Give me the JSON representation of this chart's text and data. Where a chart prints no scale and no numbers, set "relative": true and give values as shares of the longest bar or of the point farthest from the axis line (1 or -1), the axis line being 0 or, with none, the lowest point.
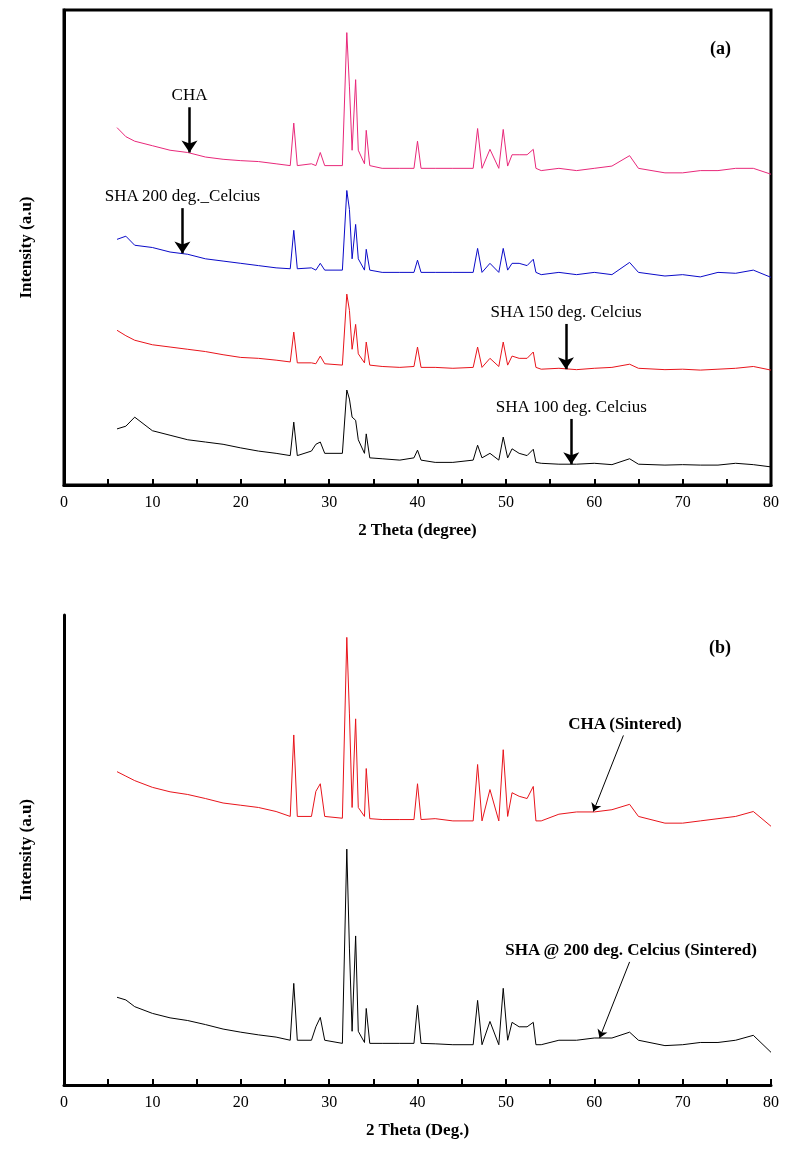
{
  "chart_data": [
    {
      "type": "line",
      "title": "(a)",
      "xlabel": "2 Theta (degree)",
      "ylabel": "Intensity (a.u)",
      "relative": true,
      "xlim": [
        0,
        80
      ],
      "xticks": [
        0,
        {
          "value": 5,
          "label": null
        },
        10,
        {
          "value": 15,
          "label": null
        },
        20,
        {
          "value": 25,
          "label": null
        },
        30,
        {
          "value": 35,
          "label": null
        },
        40,
        {
          "value": 45,
          "label": null
        },
        50,
        {
          "value": 55,
          "label": null
        },
        60,
        {
          "value": 65,
          "label": null
        },
        70,
        {
          "value": 75,
          "label": null
        },
        80
      ],
      "x": [
        6,
        7,
        8,
        10,
        12,
        14,
        16,
        18,
        20,
        22,
        24,
        25.6,
        26,
        26.4,
        28,
        28.5,
        29,
        29.5,
        31.5,
        32,
        32.3,
        32.6,
        33,
        33.3,
        34,
        34.2,
        34.6,
        36,
        38,
        39.6,
        40,
        40.4,
        42,
        44,
        46.3,
        46.8,
        47.3,
        48.2,
        49.2,
        49.7,
        50.2,
        50.7,
        51.5,
        52.4,
        53.1,
        53.4,
        54,
        56,
        58,
        60,
        62,
        64,
        65,
        68,
        70,
        72,
        74,
        76,
        78,
        80
      ],
      "series": [
        {
          "color": "#e8287a",
          "values": [
            0.79,
            0.77,
            0.76,
            0.75,
            0.74,
            0.735,
            0.725,
            0.72,
            0.717,
            0.715,
            0.71,
            0.706,
            0.8,
            0.706,
            0.71,
            0.706,
            0.735,
            0.706,
            0.706,
            1.0,
            0.88,
            0.74,
            0.896,
            0.74,
            0.71,
            0.784,
            0.706,
            0.7,
            0.7,
            0.7,
            0.76,
            0.7,
            0.7,
            0.7,
            0.7,
            0.788,
            0.7,
            0.742,
            0.7,
            0.786,
            0.705,
            0.73,
            0.73,
            0.73,
            0.742,
            0.7,
            0.695,
            0.7,
            0.695,
            0.7,
            0.705,
            0.728,
            0.7,
            0.69,
            0.69,
            0.695,
            0.695,
            0.7,
            0.7,
            0.687
          ]
        },
        {
          "color": "#0a0ac8",
          "values": [
            0.543,
            0.55,
            0.53,
            0.525,
            0.515,
            0.51,
            0.5,
            0.495,
            0.49,
            0.485,
            0.48,
            0.478,
            0.563,
            0.478,
            0.48,
            0.475,
            0.49,
            0.475,
            0.475,
            0.651,
            0.609,
            0.5,
            0.576,
            0.5,
            0.475,
            0.521,
            0.475,
            0.47,
            0.47,
            0.47,
            0.497,
            0.47,
            0.47,
            0.47,
            0.47,
            0.523,
            0.47,
            0.49,
            0.47,
            0.523,
            0.475,
            0.49,
            0.49,
            0.485,
            0.499,
            0.47,
            0.465,
            0.47,
            0.465,
            0.47,
            0.465,
            0.492,
            0.47,
            0.462,
            0.465,
            0.46,
            0.47,
            0.468,
            0.475,
            0.459
          ]
        },
        {
          "color": "#e8141b",
          "values": [
            0.342,
            0.33,
            0.32,
            0.31,
            0.305,
            0.3,
            0.295,
            0.288,
            0.282,
            0.28,
            0.276,
            0.272,
            0.338,
            0.27,
            0.27,
            0.268,
            0.285,
            0.268,
            0.265,
            0.422,
            0.386,
            0.3,
            0.355,
            0.29,
            0.27,
            0.316,
            0.265,
            0.262,
            0.26,
            0.262,
            0.305,
            0.26,
            0.26,
            0.258,
            0.26,
            0.305,
            0.26,
            0.28,
            0.262,
            0.316,
            0.265,
            0.285,
            0.28,
            0.28,
            0.294,
            0.26,
            0.256,
            0.258,
            0.255,
            0.258,
            0.26,
            0.267,
            0.258,
            0.255,
            0.256,
            0.254,
            0.256,
            0.258,
            0.262,
            0.254
          ]
        },
        {
          "color": "#000000",
          "values": [
            0.124,
            0.13,
            0.15,
            0.12,
            0.11,
            0.1,
            0.095,
            0.09,
            0.082,
            0.075,
            0.07,
            0.065,
            0.139,
            0.065,
            0.075,
            0.09,
            0.095,
            0.07,
            0.07,
            0.21,
            0.19,
            0.15,
            0.143,
            0.1,
            0.07,
            0.113,
            0.06,
            0.058,
            0.055,
            0.06,
            0.077,
            0.055,
            0.05,
            0.05,
            0.055,
            0.088,
            0.06,
            0.07,
            0.055,
            0.106,
            0.06,
            0.08,
            0.07,
            0.065,
            0.079,
            0.05,
            0.048,
            0.046,
            0.046,
            0.048,
            0.045,
            0.058,
            0.046,
            0.044,
            0.045,
            0.044,
            0.044,
            0.048,
            0.045,
            0.04
          ]
        }
      ],
      "annotations": [
        {
          "text": "CHA",
          "x": 14.2,
          "y": 0.735
        },
        {
          "text": "SHA 200 deg._Celcius",
          "x": 13.4,
          "y": 0.512
        },
        {
          "text": "SHA 150 deg. Celcius",
          "x": 56.8,
          "y": 0.256
        },
        {
          "text": "SHA 100 deg. Celcius",
          "x": 57.4,
          "y": 0.046
        }
      ]
    },
    {
      "type": "line",
      "title": "(b)",
      "xlabel": "2 Theta (Deg.)",
      "ylabel": "Intensity (a.u)",
      "relative": true,
      "xlim": [
        0,
        80
      ],
      "xticks": [
        0,
        {
          "value": 5,
          "label": null
        },
        10,
        {
          "value": 15,
          "label": null
        },
        20,
        {
          "value": 25,
          "label": null
        },
        30,
        {
          "value": 35,
          "label": null
        },
        40,
        {
          "value": 45,
          "label": null
        },
        50,
        {
          "value": 55,
          "label": null
        },
        60,
        {
          "value": 65,
          "label": null
        },
        70,
        {
          "value": 75,
          "label": null
        },
        80
      ],
      "x": [
        6,
        7,
        8,
        10,
        12,
        14,
        16,
        18,
        20,
        22,
        24,
        25.6,
        26,
        26.4,
        28,
        28.5,
        29,
        29.5,
        31.5,
        32,
        32.3,
        32.6,
        33,
        33.3,
        34,
        34.2,
        34.6,
        36,
        38,
        39.6,
        40,
        40.4,
        42,
        44,
        46.3,
        46.8,
        47.3,
        48.2,
        49.2,
        49.7,
        50.2,
        50.7,
        51.5,
        52.4,
        53.1,
        53.4,
        54,
        56,
        58,
        60,
        62,
        64,
        65,
        68,
        70,
        72,
        74,
        76,
        78,
        80
      ],
      "series": [
        {
          "color": "#e8141b",
          "values": [
            0.7,
            0.69,
            0.68,
            0.665,
            0.655,
            0.649,
            0.64,
            0.63,
            0.625,
            0.62,
            0.611,
            0.6,
            0.782,
            0.6,
            0.6,
            0.656,
            0.673,
            0.6,
            0.596,
            1.0,
            0.829,
            0.62,
            0.818,
            0.62,
            0.6,
            0.707,
            0.595,
            0.593,
            0.593,
            0.593,
            0.673,
            0.593,
            0.595,
            0.59,
            0.59,
            0.716,
            0.59,
            0.66,
            0.59,
            0.749,
            0.6,
            0.653,
            0.645,
            0.64,
            0.667,
            0.59,
            0.59,
            0.605,
            0.61,
            0.61,
            0.615,
            0.627,
            0.6,
            0.585,
            0.585,
            0.59,
            0.595,
            0.6,
            0.611,
            0.578
          ]
        },
        {
          "color": "#000000",
          "values": [
            0.196,
            0.19,
            0.175,
            0.16,
            0.15,
            0.144,
            0.135,
            0.125,
            0.118,
            0.112,
            0.107,
            0.1,
            0.227,
            0.1,
            0.1,
            0.13,
            0.151,
            0.1,
            0.093,
            0.527,
            0.304,
            0.12,
            0.333,
            0.12,
            0.095,
            0.171,
            0.093,
            0.093,
            0.093,
            0.093,
            0.178,
            0.093,
            0.092,
            0.09,
            0.09,
            0.189,
            0.09,
            0.142,
            0.09,
            0.216,
            0.1,
            0.14,
            0.13,
            0.13,
            0.14,
            0.09,
            0.09,
            0.1,
            0.1,
            0.105,
            0.105,
            0.118,
            0.1,
            0.088,
            0.09,
            0.095,
            0.095,
            0.1,
            0.111,
            0.073
          ]
        }
      ],
      "annotations": [
        {
          "text": "CHA (Sintered)",
          "x": 59.9,
          "y": 0.611
        },
        {
          "text": "SHA @ 200 deg. Celcius (Sintered)",
          "x": 60.6,
          "y": 0.105
        }
      ]
    }
  ]
}
